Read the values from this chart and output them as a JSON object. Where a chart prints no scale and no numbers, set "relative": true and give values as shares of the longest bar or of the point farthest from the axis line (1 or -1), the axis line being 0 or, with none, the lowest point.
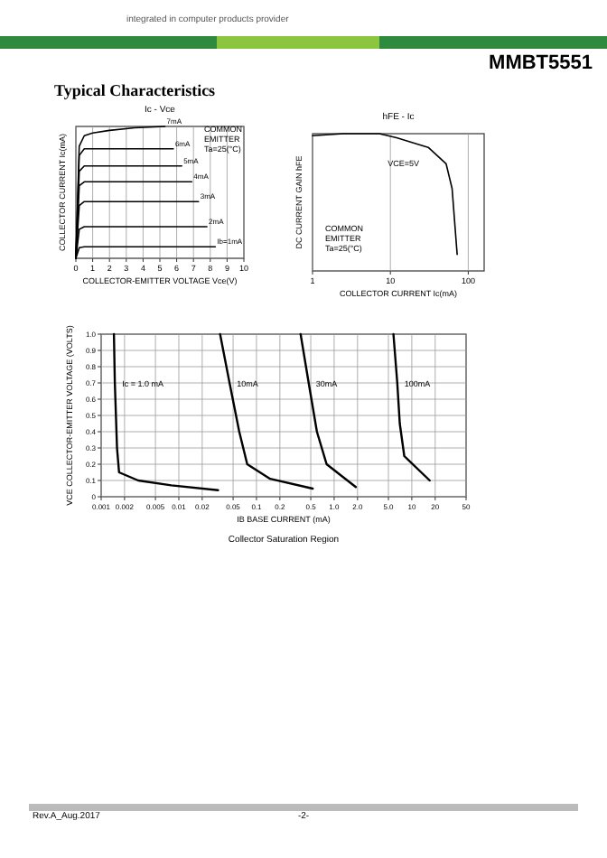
{
  "chart_data": [
    {
      "type": "other",
      "title": "MMBT5551",
      "subtitle": "Typical Characteristics",
      "annotations": [
        "integrated in computer products provider",
        "Rev.A_Aug.2017",
        "-2-"
      ]
    },
    {
      "type": "line",
      "title": "Ic - Vce",
      "xlabel": "COLLECTOR-EMITTER VOLTAGE Vce(V)",
      "ylabel": "COLLECTOR CURRENT Ic(mA)",
      "relative": true,
      "xlim": [
        0,
        10
      ],
      "xticks": [
        0,
        1,
        2,
        3,
        4,
        5,
        6,
        7,
        8,
        9,
        10
      ],
      "grid": "x",
      "annotations": [
        "COMMON EMITTER Ta=25(°C)"
      ],
      "series": [
        {
          "name": "7mA",
          "color": "#000000",
          "x": [
            0,
            0.2,
            0.5,
            1,
            2,
            3.5,
            5.3
          ],
          "values": [
            0,
            0.85,
            0.93,
            0.95,
            0.97,
            0.99,
            1
          ]
        },
        {
          "name": "6mA",
          "color": "#000000",
          "x": [
            0,
            0.2,
            0.5,
            5.8
          ],
          "values": [
            0,
            0.78,
            0.83,
            0.83
          ]
        },
        {
          "name": "5mA",
          "color": "#000000",
          "x": [
            0,
            0.2,
            0.5,
            6.3
          ],
          "values": [
            0,
            0.66,
            0.7,
            0.7
          ]
        },
        {
          "name": "4mA",
          "color": "#000000",
          "x": [
            0,
            0.2,
            0.5,
            6.9
          ],
          "values": [
            0,
            0.55,
            0.58,
            0.58
          ]
        },
        {
          "name": "3mA",
          "color": "#000000",
          "x": [
            0,
            0.2,
            0.5,
            7.3
          ],
          "values": [
            0,
            0.4,
            0.43,
            0.43
          ]
        },
        {
          "name": "2mA",
          "color": "#000000",
          "x": [
            0,
            0.2,
            0.5,
            7.8
          ],
          "values": [
            0,
            0.22,
            0.24,
            0.24
          ]
        },
        {
          "name": "Ib=1mA",
          "color": "#000000",
          "x": [
            0,
            0.2,
            0.5,
            8.3
          ],
          "values": [
            0,
            0.08,
            0.087,
            0.087
          ]
        }
      ]
    },
    {
      "type": "line",
      "title": "hFE - Ic",
      "xlabel": "COLLECTOR CURRENT Ic(mA)",
      "ylabel": "DC CURRENT GAIN hFE",
      "relative": true,
      "log": "x",
      "xlim": [
        1,
        160
      ],
      "xticks": [
        1,
        10,
        100
      ],
      "grid": "x",
      "annotations": [
        "VCE=5V",
        "COMMON EMITTER Ta=25(°C)"
      ],
      "series": [
        {
          "color": "#000000",
          "x": [
            1,
            2.5,
            7.2,
            12,
            30.6,
            52,
            62,
            72
          ],
          "values": [
            0.985,
            1,
            1,
            0.97,
            0.9,
            0.78,
            0.6,
            0.12
          ]
        }
      ]
    },
    {
      "type": "line",
      "xlabel": "IB BASE CURRENT (mA)",
      "ylabel": "VCE COLLECTOR-EMITTER VOLTAGE (VOLTS)",
      "log": "x",
      "xlim": [
        0.001,
        50
      ],
      "xticks": [
        0.001,
        0.002,
        0.005,
        0.01,
        0.02,
        0.05,
        0.1,
        0.2,
        0.5,
        {
          "value": 1,
          "label": "1.0"
        },
        {
          "value": 2,
          "label": "2.0"
        },
        {
          "value": 5,
          "label": "5.0"
        },
        10,
        20,
        50
      ],
      "ylim": [
        0,
        1
      ],
      "yticks": [
        0,
        0.1,
        0.2,
        0.3,
        0.4,
        0.5,
        0.6,
        0.7,
        0.8,
        0.9,
        {
          "value": 1,
          "label": "1.0"
        }
      ],
      "grid": true,
      "annotations": [
        "Collector Saturation Region"
      ],
      "series": [
        {
          "name": "Ic = 1.0 mA",
          "color": "#000000",
          "x": [
            0.00146,
            0.0015,
            0.0016,
            0.0017,
            0.003,
            0.008,
            0.032
          ],
          "values": [
            1,
            0.7,
            0.3,
            0.15,
            0.1,
            0.07,
            0.04
          ]
        },
        {
          "name": "10mA",
          "color": "#000000",
          "x": [
            0.034,
            0.045,
            0.06,
            0.076,
            0.15,
            0.53
          ],
          "values": [
            1,
            0.7,
            0.4,
            0.2,
            0.11,
            0.05
          ]
        },
        {
          "name": "30mA",
          "color": "#000000",
          "x": [
            0.37,
            0.47,
            0.6,
            0.8,
            1.9
          ],
          "values": [
            1,
            0.7,
            0.4,
            0.2,
            0.06
          ]
        },
        {
          "name": "100mA",
          "color": "#000000",
          "x": [
            5.8,
            6.5,
            7,
            8,
            17
          ],
          "values": [
            1,
            0.7,
            0.45,
            0.25,
            0.1
          ]
        }
      ]
    }
  ]
}
